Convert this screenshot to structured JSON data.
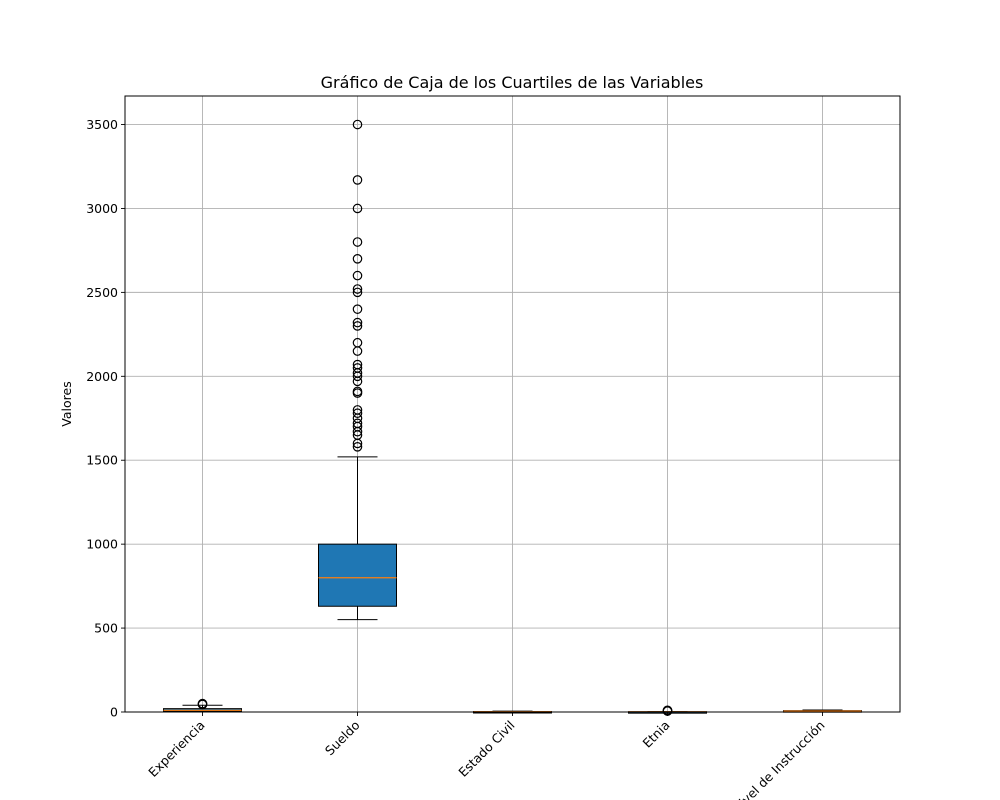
{
  "chart_data": {
    "type": "box",
    "title": "Gráfico de Caja de los Cuartiles de las Variables",
    "xlabel": "",
    "ylabel": "Valores",
    "ylim": [
      0,
      3670
    ],
    "yticks": [
      0,
      500,
      1000,
      1500,
      2000,
      2500,
      3000,
      3500
    ],
    "grid": true,
    "categories": [
      "Experiencia",
      "Sueldo",
      "Estado Civil",
      "Etnia",
      "Nivel de Instrucción"
    ],
    "boxes": [
      {
        "category": "Experiencia",
        "whisker_low": 0,
        "q1": 5,
        "median": 10,
        "q3": 20,
        "whisker_high": 40,
        "outliers": [
          45,
          48,
          50
        ]
      },
      {
        "category": "Sueldo",
        "whisker_low": 550,
        "q1": 630,
        "median": 800,
        "q3": 1000,
        "whisker_high": 1520,
        "outliers": [
          1580,
          1600,
          1650,
          1670,
          1700,
          1720,
          1750,
          1780,
          1800,
          1900,
          1910,
          1970,
          2000,
          2020,
          2050,
          2070,
          2150,
          2200,
          2300,
          2320,
          2400,
          2500,
          2520,
          2600,
          2700,
          2800,
          3000,
          3170,
          3500
        ]
      },
      {
        "category": "Estado Civil",
        "whisker_low": 1,
        "q1": 1,
        "median": 2,
        "q3": 3,
        "whisker_high": 5,
        "outliers": []
      },
      {
        "category": "Etnia",
        "whisker_low": 1,
        "q1": 1,
        "median": 1,
        "q3": 2,
        "whisker_high": 3,
        "outliers": [
          5,
          8,
          10
        ]
      },
      {
        "category": "Nivel de Instrucción",
        "whisker_low": 1,
        "q1": 3,
        "median": 5,
        "q3": 8,
        "whisker_high": 12,
        "outliers": []
      }
    ],
    "colors": {
      "box_fill": "#1f77b4",
      "median_line": "#ff7f0e",
      "edge": "#000000",
      "grid": "#b0b0b0"
    }
  }
}
